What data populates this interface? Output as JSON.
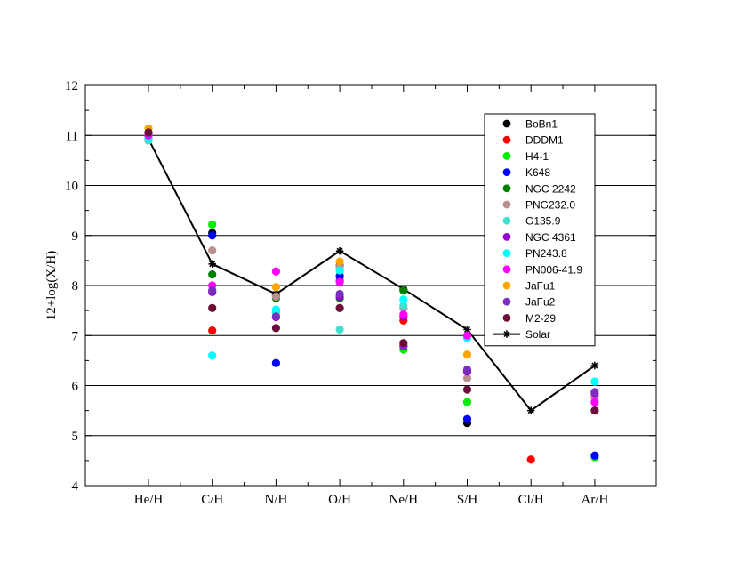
{
  "chart_data": {
    "type": "scatter",
    "ylabel": "12+log(X/H)",
    "xlabel": "",
    "categories": [
      "He/H",
      "C/H",
      "N/H",
      "O/H",
      "Ne/H",
      "S/H",
      "Cl/H",
      "Ar/H"
    ],
    "ylim": [
      4,
      12
    ],
    "yticks": [
      "4",
      "5",
      "6",
      "7",
      "8",
      "9",
      "10",
      "11",
      "12"
    ],
    "grid": "horizontal",
    "legend_position": "top-right",
    "series": [
      {
        "name": "BoBn1",
        "color": "#000000",
        "values": [
          10.95,
          9.05,
          7.8,
          8.4,
          7.92,
          5.25,
          null,
          null
        ]
      },
      {
        "name": "DDDM1",
        "color": "#ff0000",
        "values": [
          11.0,
          7.1,
          null,
          8.1,
          7.3,
          null,
          4.52,
          5.78
        ]
      },
      {
        "name": "H4-1",
        "color": "#00ee00",
        "values": [
          10.9,
          9.22,
          7.5,
          8.2,
          6.72,
          5.67,
          null,
          4.57
        ]
      },
      {
        "name": "K648",
        "color": "#0000ff",
        "values": [
          11.0,
          9.0,
          6.45,
          8.18,
          6.8,
          5.33,
          null,
          4.6
        ]
      },
      {
        "name": "NGC 2242",
        "color": "#008000",
        "values": [
          10.98,
          8.22,
          7.75,
          7.75,
          7.9,
          null,
          null,
          null
        ]
      },
      {
        "name": "PNG232.0",
        "color": "#bc8f8f",
        "values": [
          10.96,
          8.7,
          7.78,
          8.38,
          7.55,
          6.15,
          null,
          5.8
        ]
      },
      {
        "name": "G135.9",
        "color": "#40e0d0",
        "values": [
          10.9,
          null,
          7.45,
          7.12,
          7.6,
          null,
          null,
          null
        ]
      },
      {
        "name": "NGC 4361",
        "color": "#9400d3",
        "values": [
          11.03,
          7.87,
          7.37,
          7.78,
          7.38,
          6.28,
          null,
          5.85
        ]
      },
      {
        "name": "PN243.8",
        "color": "#00ffff",
        "values": [
          10.95,
          6.6,
          7.52,
          8.3,
          7.72,
          6.95,
          null,
          6.08
        ]
      },
      {
        "name": "PN006-41.9",
        "color": "#ff00ff",
        "values": [
          11.0,
          8.0,
          8.28,
          8.07,
          7.42,
          7.0,
          null,
          5.67
        ]
      },
      {
        "name": "JaFu1",
        "color": "#ffa500",
        "values": [
          11.14,
          null,
          7.97,
          8.48,
          null,
          6.62,
          null,
          null
        ]
      },
      {
        "name": "JaFu2",
        "color": "#7b2fbe",
        "values": [
          11.05,
          7.9,
          7.38,
          7.83,
          6.78,
          6.32,
          null,
          5.87
        ]
      },
      {
        "name": "M2-29",
        "color": "#6b0f3a",
        "values": [
          11.06,
          7.55,
          7.15,
          7.55,
          6.85,
          5.92,
          null,
          5.5
        ]
      }
    ],
    "reference": {
      "name": "Solar",
      "color": "#000000",
      "marker": "star",
      "values": [
        10.93,
        8.43,
        7.83,
        8.69,
        7.93,
        7.12,
        5.5,
        6.4
      ]
    }
  }
}
